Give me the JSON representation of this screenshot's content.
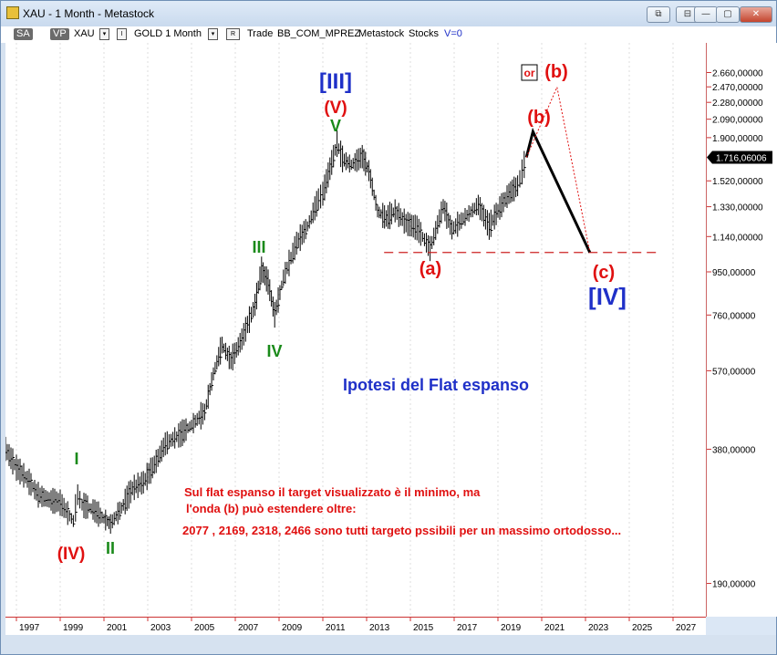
{
  "window": {
    "title": "XAU - 1 Month - Metastock",
    "controls": [
      "⧉",
      "⊟",
      "—",
      "▢",
      "✕"
    ]
  },
  "toolbar": {
    "sa": "SA",
    "vp": "VP",
    "symbol": "XAU",
    "i": "I",
    "name_period": "GOLD 1 Month",
    "r": "R",
    "trade": "Trade",
    "account": "BB_COM_MPREZ",
    "source": "Metastock",
    "type": "Stocks",
    "volume": "V=0"
  },
  "colors": {
    "bars": "#000000",
    "wave_red": "#e01010",
    "wave_green": "#1a8a1a",
    "wave_blue": "#1f30c8",
    "axis": "#cc3333",
    "support_line": "#cc2222"
  },
  "chart_data": {
    "type": "ohlc",
    "title": "",
    "ylabel": "",
    "xlabel": "",
    "scale": "log",
    "ylim": [
      160,
      3100
    ],
    "xlim": [
      1996.5,
      2028.5
    ],
    "grid": true,
    "y_ticks": [
      2660,
      2470,
      2280,
      2090,
      1900,
      1520,
      1330,
      1140,
      950,
      760,
      570,
      380,
      190
    ],
    "y_tick_labels": [
      "2.660,00000",
      "2.470,00000",
      "2.280,00000",
      "2.090,00000",
      "1.900,00000",
      "1.520,00000",
      "1.330,00000",
      "1.140,00000",
      "950,00000",
      "760,00000",
      "570,00000",
      "380,00000",
      "190,00000"
    ],
    "last_price": 1716.06006,
    "last_price_label": "1.716,06006",
    "x_tick_labels": [
      "1997",
      "1999",
      "2001",
      "2003",
      "2005",
      "2007",
      "2009",
      "2011",
      "2013",
      "2015",
      "2017",
      "2019",
      "2021",
      "2023",
      "2025",
      "2027"
    ],
    "price_path": [
      [
        1996.0,
        390
      ],
      [
        1996.5,
        380
      ],
      [
        1997.0,
        345
      ],
      [
        1997.5,
        325
      ],
      [
        1998.0,
        300
      ],
      [
        1998.5,
        292
      ],
      [
        1999.0,
        288
      ],
      [
        1999.6,
        262
      ],
      [
        1999.8,
        300
      ],
      [
        2000.0,
        285
      ],
      [
        2000.5,
        278
      ],
      [
        2001.0,
        265
      ],
      [
        2001.3,
        258
      ],
      [
        2001.8,
        280
      ],
      [
        2002.3,
        310
      ],
      [
        2002.8,
        320
      ],
      [
        2003.3,
        350
      ],
      [
        2003.8,
        390
      ],
      [
        2004.5,
        410
      ],
      [
        2005.0,
        430
      ],
      [
        2005.6,
        460
      ],
      [
        2006.0,
        560
      ],
      [
        2006.4,
        650
      ],
      [
        2006.8,
        600
      ],
      [
        2007.3,
        670
      ],
      [
        2007.9,
        800
      ],
      [
        2008.2,
        960
      ],
      [
        2008.5,
        900
      ],
      [
        2008.8,
        760
      ],
      [
        2009.2,
        920
      ],
      [
        2009.8,
        1100
      ],
      [
        2010.3,
        1200
      ],
      [
        2010.8,
        1380
      ],
      [
        2011.0,
        1420
      ],
      [
        2011.65,
        1840
      ],
      [
        2011.9,
        1700
      ],
      [
        2012.3,
        1650
      ],
      [
        2012.8,
        1720
      ],
      [
        2013.1,
        1600
      ],
      [
        2013.5,
        1300
      ],
      [
        2013.9,
        1250
      ],
      [
        2014.3,
        1300
      ],
      [
        2014.8,
        1220
      ],
      [
        2015.3,
        1190
      ],
      [
        2015.9,
        1070
      ],
      [
        2016.5,
        1330
      ],
      [
        2016.9,
        1180
      ],
      [
        2017.5,
        1260
      ],
      [
        2018.1,
        1340
      ],
      [
        2018.6,
        1200
      ],
      [
        2019.0,
        1300
      ],
      [
        2019.5,
        1420
      ],
      [
        2019.9,
        1480
      ],
      [
        2020.1,
        1590
      ],
      [
        2020.3,
        1716
      ]
    ],
    "wave_projection": {
      "primary": [
        [
          2020.3,
          1716
        ],
        [
          2020.6,
          1960
        ],
        [
          2023.2,
          1050
        ]
      ],
      "alternate": [
        [
          2020.3,
          1716
        ],
        [
          2021.7,
          2466
        ],
        [
          2023.2,
          1050
        ]
      ]
    },
    "support_level": 1050,
    "support_x_range": [
      2013.8,
      2026.3
    ],
    "target_levels": [
      2077,
      2169,
      2318,
      2466
    ]
  },
  "annotations": {
    "wave_IV_major": "(IV)",
    "wave_I": "I",
    "wave_II": "II",
    "wave_III": "III",
    "wave_IV": "IV",
    "wave_V": "V",
    "wave_V_paren": "(V)",
    "wave_III_bracket": "[III]",
    "wave_a": "(a)",
    "wave_b": "(b)",
    "wave_b_alt": "(b)",
    "or_label": "or",
    "wave_c": "(c)",
    "wave_IV_bracket": "[IV]",
    "heading": "Ipotesi del Flat espanso",
    "note_line1": "Sul flat espanso il target visualizzato è il minimo, ma",
    "note_line2": "l'onda (b) può estendere oltre:",
    "note_line3": "2077 , 2169, 2318, 2466 sono tutti targeto pssibili per un massimo ortodosso..."
  }
}
